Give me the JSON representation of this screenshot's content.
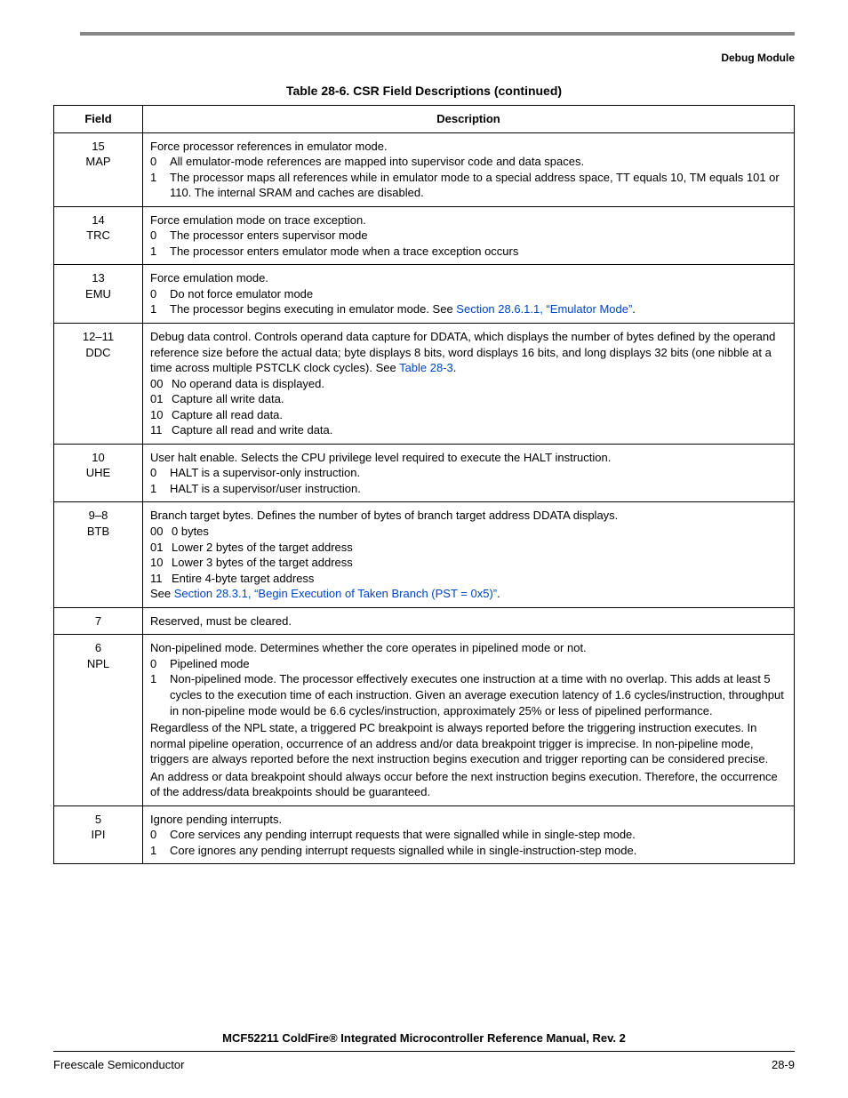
{
  "header": {
    "section": "Debug Module"
  },
  "caption": "Table 28-6. CSR Field Descriptions (continued)",
  "columns": {
    "field": "Field",
    "description": "Description"
  },
  "rows": [
    {
      "bit": "15",
      "name": "MAP",
      "lead": "Force processor references in emulator mode.",
      "opts": [
        {
          "code": "0",
          "text": "All emulator-mode references are mapped into supervisor code and data spaces."
        },
        {
          "code": "1",
          "text": "The processor maps all references while in emulator mode to a special address space, TT equals 10, TM equals 101 or 110. The internal SRAM and caches are disabled."
        }
      ]
    },
    {
      "bit": "14",
      "name": "TRC",
      "lead": "Force emulation mode on trace exception.",
      "opts": [
        {
          "code": "0",
          "text": "The processor enters supervisor mode"
        },
        {
          "code": "1",
          "text": "The processor enters emulator mode when a trace exception occurs"
        }
      ]
    },
    {
      "bit": "13",
      "name": "EMU",
      "lead": "Force emulation mode.",
      "opts": [
        {
          "code": "0",
          "text": "Do not force emulator mode"
        },
        {
          "code": "1",
          "text_pre": "The processor begins executing in emulator mode. See ",
          "link": "Section 28.6.1.1, “Emulator Mode”",
          "text_post": "."
        }
      ]
    },
    {
      "bit": "12–11",
      "name": "DDC",
      "lead_pre": "Debug data control. Controls operand data capture for DDATA, which displays the number of bytes defined by the operand reference size before the actual data; byte displays 8 bits, word displays 16 bits, and long displays 32 bits (one nibble at a time across multiple PSTCLK clock cycles). See ",
      "lead_link": "Table 28-3",
      "lead_post": ".",
      "opts": [
        {
          "code": "00",
          "text": "No operand data is displayed."
        },
        {
          "code": "01",
          "text": "Capture all write data."
        },
        {
          "code": "10",
          "text": "Capture all read data."
        },
        {
          "code": "11",
          "text": "Capture all read and write data."
        }
      ]
    },
    {
      "bit": "10",
      "name": "UHE",
      "lead": "User halt enable. Selects the CPU privilege level required to execute the HALT instruction.",
      "opts": [
        {
          "code": "0",
          "text": "HALT is a supervisor-only instruction."
        },
        {
          "code": "1",
          "text": "HALT is a supervisor/user instruction."
        }
      ]
    },
    {
      "bit": "9–8",
      "name": "BTB",
      "lead": "Branch target bytes. Defines the number of bytes of branch target address DDATA displays.",
      "opts": [
        {
          "code": "00",
          "text": "0 bytes"
        },
        {
          "code": "01",
          "text": "Lower 2 bytes of the target address"
        },
        {
          "code": "10",
          "text": "Lower 3 bytes of the target address"
        },
        {
          "code": "11",
          "text": "Entire 4-byte target address"
        }
      ],
      "trail_pre": "See ",
      "trail_link": "Section 28.3.1, “Begin Execution of Taken Branch (PST = 0x5)”",
      "trail_post": "."
    },
    {
      "bit": "7",
      "name": "",
      "lead": "Reserved, must be cleared."
    },
    {
      "bit": "6",
      "name": "NPL",
      "lead": "Non-pipelined mode. Determines whether the core operates in pipelined mode or not.",
      "opts": [
        {
          "code": "0",
          "text": "Pipelined mode"
        },
        {
          "code": "1",
          "text": "Non-pipelined mode. The processor effectively executes one instruction at a time with no overlap. This adds at least 5 cycles to the execution time of each instruction. Given an average execution latency of 1.6 cycles/instruction, throughput in non-pipeline mode would be 6.6 cycles/instruction, approximately 25% or less of pipelined performance."
        }
      ],
      "paras": [
        "Regardless of the NPL state, a triggered PC breakpoint is always reported before the triggering instruction executes. In normal pipeline operation, occurrence of an address and/or data breakpoint trigger is imprecise. In non-pipeline mode, triggers are always reported before the next instruction begins execution and trigger reporting can be considered precise.",
        "An address or data breakpoint should always occur before the next instruction begins execution. Therefore, the occurrence of the address/data breakpoints should be guaranteed."
      ]
    },
    {
      "bit": "5",
      "name": "IPI",
      "lead": "Ignore pending interrupts.",
      "opts": [
        {
          "code": "0",
          "text": "Core services any pending interrupt requests that were signalled while in single-step mode."
        },
        {
          "code": "1",
          "text": "Core ignores any pending interrupt requests signalled while in single-instruction-step mode."
        }
      ]
    }
  ],
  "footer": {
    "title": "MCF52211 ColdFire® Integrated Microcontroller Reference Manual, Rev. 2",
    "left": "Freescale Semiconductor",
    "right": "28-9"
  }
}
